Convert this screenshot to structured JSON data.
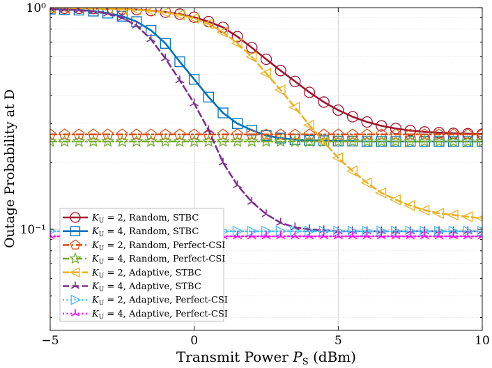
{
  "chart_data": {
    "type": "line",
    "title": "",
    "xlabel": "Transmit Power P_S (dBm)",
    "xlabel_parts": {
      "main": "Transmit Power ",
      "var": "P",
      "sub": "S",
      "unit": " (dBm)"
    },
    "ylabel": "Outage Probability at D",
    "xlim": [
      -5,
      10
    ],
    "ylim": [
      0.035,
      1
    ],
    "yscale": "log",
    "xticks": [
      -5,
      0,
      5,
      10
    ],
    "xtick_labels": [
      "−5",
      "0",
      "5",
      "10"
    ],
    "yticks": [
      0.1,
      1
    ],
    "ytick_labels": [
      "10⁻¹",
      "10⁰"
    ],
    "grid": true,
    "legend": "bottom-left",
    "series": [
      {
        "name": "K_U = 2, Random, STBC",
        "label_k": "K",
        "label_sub": "U",
        "label_text": " = 2, Random, STBC",
        "color": "#a2142f",
        "line": "solid",
        "marker": "circle",
        "marker_every": 0.5,
        "x": [
          -5,
          -4.5,
          -4,
          -3.5,
          -3,
          -2.5,
          -2,
          -1.5,
          -1,
          -0.5,
          0,
          0.5,
          1,
          1.5,
          2,
          2.5,
          3,
          3.5,
          4,
          4.5,
          5,
          5.5,
          6,
          6.5,
          7,
          7.5,
          8,
          8.5,
          9,
          9.5,
          10
        ],
        "y": [
          0.995,
          0.994,
          0.993,
          0.991,
          0.989,
          0.985,
          0.98,
          0.97,
          0.955,
          0.935,
          0.905,
          0.865,
          0.815,
          0.74,
          0.66,
          0.585,
          0.52,
          0.465,
          0.415,
          0.375,
          0.345,
          0.322,
          0.305,
          0.293,
          0.285,
          0.279,
          0.275,
          0.273,
          0.271,
          0.27,
          0.269
        ]
      },
      {
        "name": "K_U = 4, Random, STBC",
        "label_k": "K",
        "label_sub": "U",
        "label_text": " = 4, Random, STBC",
        "color": "#0072bd",
        "line": "solid",
        "marker": "square",
        "marker_every": 0.5,
        "x": [
          -5,
          -4.5,
          -4,
          -3.5,
          -3,
          -2.5,
          -2,
          -1.5,
          -1,
          -0.5,
          0,
          0.5,
          1,
          1.5,
          2,
          2.5,
          3,
          3.5,
          4,
          4.5,
          5,
          5.5,
          6,
          6.5,
          7,
          7.5,
          8,
          8.5,
          9,
          9.5,
          10
        ],
        "y": [
          0.985,
          0.98,
          0.975,
          0.965,
          0.945,
          0.915,
          0.865,
          0.79,
          0.69,
          0.57,
          0.475,
          0.395,
          0.335,
          0.3,
          0.28,
          0.265,
          0.258,
          0.254,
          0.252,
          0.251,
          0.25,
          0.25,
          0.249,
          0.249,
          0.249,
          0.249,
          0.249,
          0.249,
          0.249,
          0.249,
          0.249
        ]
      },
      {
        "name": "K_U = 2, Random, Perfect-CSI",
        "label_k": "K",
        "label_sub": "U",
        "label_text": " = 2, Random, Perfect-CSI",
        "color": "#d95319",
        "line": "dashdot",
        "marker": "pentagon",
        "marker_every": 0.5,
        "x": [
          -5,
          -4.5,
          -4,
          -3.5,
          -3,
          -2.5,
          -2,
          -1.5,
          -1,
          -0.5,
          0,
          0.5,
          1,
          1.5,
          2,
          2.5,
          3,
          3.5,
          4,
          4.5,
          5,
          5.5,
          6,
          6.5,
          7,
          7.5,
          8,
          8.5,
          9,
          9.5,
          10
        ],
        "y": [
          0.268,
          0.268,
          0.268,
          0.268,
          0.268,
          0.268,
          0.268,
          0.268,
          0.268,
          0.268,
          0.268,
          0.268,
          0.268,
          0.268,
          0.268,
          0.268,
          0.268,
          0.268,
          0.268,
          0.268,
          0.268,
          0.268,
          0.268,
          0.268,
          0.268,
          0.268,
          0.268,
          0.268,
          0.268,
          0.268,
          0.268
        ]
      },
      {
        "name": "K_U = 4, Random, Perfect-CSI",
        "label_k": "K",
        "label_sub": "U",
        "label_text": " = 4, Random, Perfect-CSI",
        "color": "#77ac30",
        "line": "dashdot",
        "marker": "star",
        "marker_every": 0.5,
        "x": [
          -5,
          -4.5,
          -4,
          -3.5,
          -3,
          -2.5,
          -2,
          -1.5,
          -1,
          -0.5,
          0,
          0.5,
          1,
          1.5,
          2,
          2.5,
          3,
          3.5,
          4,
          4.5,
          5,
          5.5,
          6,
          6.5,
          7,
          7.5,
          8,
          8.5,
          9,
          9.5,
          10
        ],
        "y": [
          0.249,
          0.249,
          0.249,
          0.249,
          0.249,
          0.249,
          0.249,
          0.249,
          0.249,
          0.249,
          0.249,
          0.249,
          0.249,
          0.249,
          0.249,
          0.249,
          0.249,
          0.249,
          0.249,
          0.249,
          0.249,
          0.249,
          0.249,
          0.249,
          0.249,
          0.249,
          0.249,
          0.249,
          0.249,
          0.249,
          0.249
        ]
      },
      {
        "name": "K_U = 2, Adaptive, STBC",
        "label_k": "K",
        "label_sub": "U",
        "label_text": " = 2, Adaptive, STBC",
        "color": "#edb120",
        "line": "dashed",
        "marker": "triangle-left",
        "marker_every": 0.5,
        "x": [
          -5,
          -4.5,
          -4,
          -3.5,
          -3,
          -2.5,
          -2,
          -1.5,
          -1,
          -0.5,
          0,
          0.5,
          1,
          1.5,
          2,
          2.5,
          3,
          3.5,
          4,
          4.5,
          5,
          5.5,
          6,
          6.5,
          7,
          7.5,
          8,
          8.5,
          9,
          9.5,
          10
        ],
        "y": [
          0.995,
          0.994,
          0.993,
          0.991,
          0.988,
          0.984,
          0.978,
          0.968,
          0.952,
          0.928,
          0.895,
          0.845,
          0.775,
          0.69,
          0.6,
          0.505,
          0.425,
          0.355,
          0.295,
          0.248,
          0.21,
          0.183,
          0.162,
          0.146,
          0.136,
          0.128,
          0.122,
          0.118,
          0.116,
          0.114,
          0.112
        ]
      },
      {
        "name": "K_U = 4, Adaptive, STBC",
        "label_k": "K",
        "label_sub": "U",
        "label_text": " = 4, Adaptive, STBC",
        "color": "#7e2f8e",
        "line": "dashed",
        "marker": "tri-star",
        "marker_every": 0.5,
        "x": [
          -5,
          -4.5,
          -4,
          -3.5,
          -3,
          -2.5,
          -2,
          -1.5,
          -1,
          -0.5,
          0,
          0.5,
          1,
          1.5,
          2,
          2.5,
          3,
          3.5,
          4,
          4.5,
          5,
          5.5,
          6,
          6.5,
          7,
          7.5,
          8,
          8.5,
          9,
          9.5,
          10
        ],
        "y": [
          0.985,
          0.98,
          0.975,
          0.962,
          0.94,
          0.9,
          0.83,
          0.72,
          0.59,
          0.47,
          0.37,
          0.28,
          0.2,
          0.158,
          0.133,
          0.117,
          0.107,
          0.102,
          0.1,
          0.099,
          0.098,
          0.098,
          0.098,
          0.098,
          0.098,
          0.098,
          0.098,
          0.098,
          0.098,
          0.098,
          0.098
        ]
      },
      {
        "name": "K_U = 2, Adaptive, Perfect-CSI",
        "label_k": "K",
        "label_sub": "U",
        "label_text": " = 2, Adaptive, Perfect-CSI",
        "color": "#4dbeee",
        "line": "dotted",
        "marker": "triangle-right",
        "marker_every": 0.5,
        "x": [
          -5,
          -4.5,
          -4,
          -3.5,
          -3,
          -2.5,
          -2,
          -1.5,
          -1,
          -0.5,
          0,
          0.5,
          1,
          1.5,
          2,
          2.5,
          3,
          3.5,
          4,
          4.5,
          5,
          5.5,
          6,
          6.5,
          7,
          7.5,
          8,
          8.5,
          9,
          9.5,
          10
        ],
        "y": [
          0.098,
          0.098,
          0.098,
          0.098,
          0.098,
          0.098,
          0.098,
          0.098,
          0.098,
          0.098,
          0.098,
          0.098,
          0.098,
          0.098,
          0.098,
          0.098,
          0.098,
          0.098,
          0.098,
          0.098,
          0.098,
          0.098,
          0.098,
          0.098,
          0.098,
          0.098,
          0.098,
          0.098,
          0.098,
          0.098,
          0.098
        ]
      },
      {
        "name": "K_U = 4, Adaptive, Perfect-CSI",
        "label_k": "K",
        "label_sub": "U",
        "label_text": " = 4, Adaptive, Perfect-CSI",
        "color": "#ff00ff",
        "line": "dotted",
        "marker": "tri-star",
        "marker_every": 0.5,
        "x": [
          -5,
          -4.5,
          -4,
          -3.5,
          -3,
          -2.5,
          -2,
          -1.5,
          -1,
          -0.5,
          0,
          0.5,
          1,
          1.5,
          2,
          2.5,
          3,
          3.5,
          4,
          4.5,
          5,
          5.5,
          6,
          6.5,
          7,
          7.5,
          8,
          8.5,
          9,
          9.5,
          10
        ],
        "y": [
          0.093,
          0.093,
          0.093,
          0.093,
          0.093,
          0.093,
          0.093,
          0.093,
          0.093,
          0.093,
          0.093,
          0.093,
          0.093,
          0.093,
          0.093,
          0.093,
          0.093,
          0.093,
          0.093,
          0.093,
          0.093,
          0.093,
          0.093,
          0.093,
          0.093,
          0.093,
          0.093,
          0.093,
          0.093,
          0.093,
          0.093
        ]
      }
    ]
  }
}
